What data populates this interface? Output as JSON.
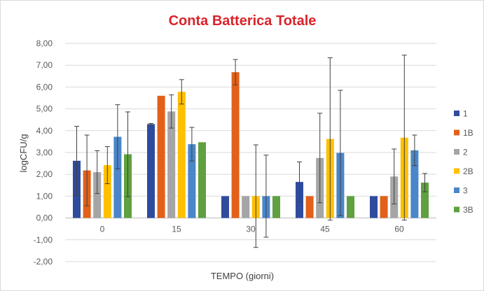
{
  "chart_data": {
    "type": "bar",
    "title": "Conta Batterica Totale",
    "title_color": "#d9232a",
    "xlabel": "TEMPO (giorni)",
    "ylabel": "logCFU/g",
    "ylim": [
      -2,
      8
    ],
    "ytick_step": 1,
    "ytick_labels": [
      "-2,00",
      "-1,00",
      "0,00",
      "1,00",
      "2,00",
      "3,00",
      "4,00",
      "5,00",
      "6,00",
      "7,00",
      "8,00"
    ],
    "grid": true,
    "legend_position": "right",
    "categories": [
      "0",
      "15",
      "30",
      "45",
      "60"
    ],
    "series": [
      {
        "name": "1",
        "color": "#2f4b9e",
        "values": [
          2.62,
          4.3,
          1.0,
          1.65,
          1.0
        ],
        "errors": [
          1.58,
          0.03,
          0.0,
          0.92,
          0.0
        ]
      },
      {
        "name": "1B",
        "color": "#e2601a",
        "values": [
          2.18,
          5.6,
          6.68,
          1.0,
          1.0
        ],
        "errors": [
          1.62,
          0.01,
          0.58,
          0.0,
          0.0
        ]
      },
      {
        "name": "2",
        "color": "#a5a5a5",
        "values": [
          2.1,
          4.88,
          1.0,
          2.75,
          1.9
        ],
        "errors": [
          0.98,
          0.76,
          0.0,
          2.05,
          1.26
        ]
      },
      {
        "name": "2B",
        "color": "#ffc000",
        "values": [
          2.42,
          5.78,
          1.0,
          3.62,
          3.68
        ],
        "errors": [
          0.85,
          0.56,
          2.35,
          3.72,
          3.78
        ]
      },
      {
        "name": "3",
        "color": "#4a86c8",
        "values": [
          3.72,
          3.38,
          1.0,
          2.98,
          3.1
        ],
        "errors": [
          1.47,
          0.77,
          1.88,
          2.87,
          0.7
        ]
      },
      {
        "name": "3B",
        "color": "#5fa040",
        "values": [
          2.92,
          3.47,
          1.0,
          1.0,
          1.62
        ],
        "errors": [
          1.94,
          0.01,
          0.0,
          0.0,
          0.42
        ]
      }
    ]
  }
}
